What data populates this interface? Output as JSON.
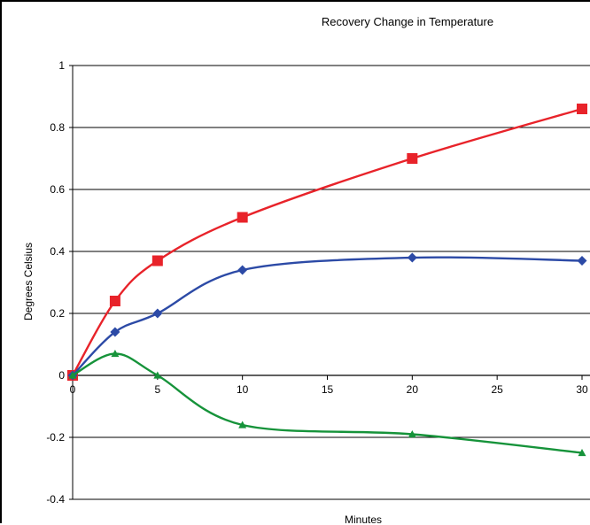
{
  "chart_data": {
    "type": "line",
    "title": "Recovery Change in Temperature",
    "xlabel": "Minutes",
    "ylabel": "Degrees Celsius",
    "xlim": [
      0,
      30
    ],
    "ylim": [
      -0.4,
      1
    ],
    "x_ticks": [
      0,
      5,
      10,
      15,
      20,
      25,
      30
    ],
    "y_ticks": [
      1,
      0.8,
      0.6,
      0.4,
      0.2,
      0,
      -0.2,
      -0.4
    ],
    "grid": true,
    "legend": "none",
    "series": [
      {
        "color": "#e8232a",
        "marker": "square",
        "x": [
          0,
          2.5,
          5,
          10,
          20,
          30
        ],
        "y": [
          0,
          0.24,
          0.37,
          0.51,
          0.7,
          0.86
        ]
      },
      {
        "color": "#2c4aa6",
        "marker": "diamond",
        "x": [
          0,
          2.5,
          5,
          10,
          20,
          30
        ],
        "y": [
          0,
          0.14,
          0.2,
          0.34,
          0.38,
          0.37
        ]
      },
      {
        "color": "#16933a",
        "marker": "triangle",
        "x": [
          0,
          2.5,
          5,
          10,
          20,
          30
        ],
        "y": [
          0,
          0.07,
          0,
          -0.16,
          -0.19,
          -0.25
        ]
      }
    ]
  }
}
